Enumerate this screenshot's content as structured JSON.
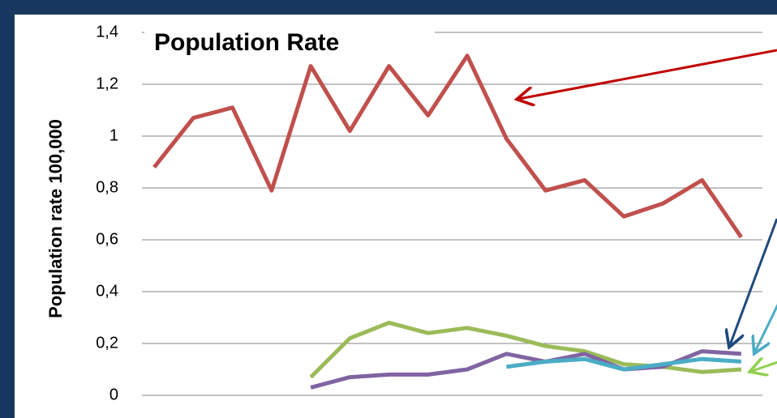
{
  "chart_data": {
    "type": "line",
    "title": "Population Rate",
    "y_label": "Population rate  100,000",
    "categories": [
      null,
      null,
      null,
      null,
      null,
      null,
      null,
      null,
      null,
      null,
      null,
      null,
      null,
      null,
      null,
      null
    ],
    "series": [
      {
        "color": "#c0504d",
        "values": [
          0.88,
          1.07,
          1.11,
          0.79,
          1.27,
          1.02,
          1.27,
          1.08,
          1.31,
          0.99,
          0.79,
          0.83,
          0.69,
          0.74,
          0.83,
          0.61
        ]
      },
      {
        "color": "#9bbb59",
        "values": [
          null,
          null,
          null,
          null,
          0.07,
          0.22,
          0.28,
          0.24,
          0.26,
          0.23,
          0.19,
          0.17,
          0.12,
          0.11,
          0.09,
          0.1
        ]
      },
      {
        "color": "#8064a2",
        "values": [
          null,
          null,
          null,
          null,
          0.03,
          0.07,
          0.08,
          0.08,
          0.1,
          0.16,
          0.13,
          0.16,
          0.1,
          0.11,
          0.17,
          0.16
        ]
      },
      {
        "color": "#4bacc6",
        "values": [
          null,
          null,
          null,
          null,
          null,
          null,
          null,
          null,
          null,
          0.11,
          0.13,
          0.14,
          0.1,
          0.12,
          0.14,
          0.13
        ]
      }
    ],
    "ylim": [
      0,
      1.4
    ],
    "yticks": [
      0,
      {
        "value": 0.2,
        "label": "0,2"
      },
      {
        "value": 0.4,
        "label": "0,4"
      },
      {
        "value": 0.6,
        "label": "0,6"
      },
      {
        "value": 0.8,
        "label": "0,8"
      },
      1,
      {
        "value": 1.2,
        "label": "1,2"
      },
      {
        "value": 1.4,
        "label": "1,4"
      }
    ],
    "grid": true
  }
}
